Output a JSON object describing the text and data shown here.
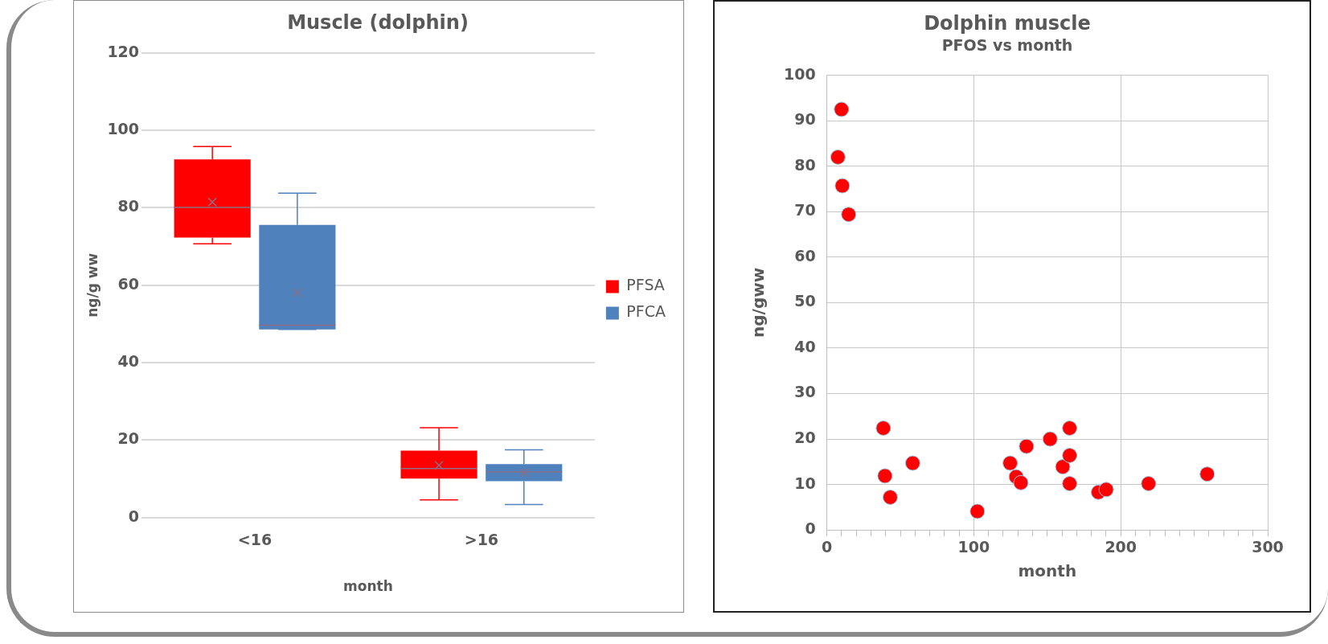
{
  "chart_data": [
    {
      "type": "box",
      "title": "Muscle (dolphin)",
      "xlabel": "month",
      "ylabel": "ng/g ww",
      "categories": [
        "<16",
        ">16"
      ],
      "series": [
        {
          "name": "PFSA",
          "color": "#ff0000",
          "boxes": [
            {
              "low": 70.7,
              "q1": 72.3,
              "median": 80.1,
              "q3": 92.5,
              "high": 95.8,
              "mean": 81.5
            },
            {
              "low": 4.6,
              "q1": 10.1,
              "median": 12.7,
              "q3": 17.3,
              "high": 23.2,
              "mean": 13.5
            }
          ]
        },
        {
          "name": "PFCA",
          "color": "#4f81bd",
          "boxes": [
            {
              "low": 48.6,
              "q1": 48.6,
              "median": 49.7,
              "q3": 75.6,
              "high": 83.8,
              "mean": 58.1
            },
            {
              "low": 3.4,
              "q1": 9.4,
              "median": 11.8,
              "q3": 13.8,
              "high": 17.5,
              "mean": 11.6
            }
          ]
        }
      ],
      "ylim": [
        0,
        120
      ],
      "yticks": [
        0,
        20,
        40,
        60,
        80,
        100,
        120
      ],
      "grid": "y",
      "legend": "right"
    },
    {
      "type": "scatter",
      "title": "Dolphin muscle",
      "subtitle": "PFOS vs month",
      "xlabel": "month",
      "ylabel": "ng/gww",
      "x": [
        9.9,
        7.5,
        10.5,
        14.8,
        38.4,
        39.5,
        43.1,
        58.4,
        102.4,
        124.7,
        128.8,
        132,
        135.8,
        151.9,
        160.5,
        165.2,
        165.2,
        165.2,
        184.8,
        190.1,
        218.9,
        258.8
      ],
      "values": [
        92.5,
        82,
        75.7,
        69.4,
        22.4,
        11.9,
        7.2,
        14.7,
        4.1,
        14.7,
        11.7,
        10.4,
        18.4,
        20,
        13.9,
        22.4,
        16.4,
        10.2,
        8.3,
        8.9,
        10.2,
        12.3
      ],
      "color": "#ff0000",
      "marker": "circle",
      "xlim": [
        0,
        300
      ],
      "xticks": [
        0,
        {
          "value": 10,
          "label": null
        },
        {
          "value": 20,
          "label": null
        },
        {
          "value": 30,
          "label": null
        },
        {
          "value": 40,
          "label": null
        },
        {
          "value": 50,
          "label": null
        },
        {
          "value": 60,
          "label": null
        },
        {
          "value": 70,
          "label": null
        },
        {
          "value": 80,
          "label": null
        },
        {
          "value": 90,
          "label": null
        },
        100,
        {
          "value": 110,
          "label": null
        },
        {
          "value": 120,
          "label": null
        },
        {
          "value": 130,
          "label": null
        },
        {
          "value": 140,
          "label": null
        },
        {
          "value": 150,
          "label": null
        },
        {
          "value": 160,
          "label": null
        },
        {
          "value": 170,
          "label": null
        },
        {
          "value": 180,
          "label": null
        },
        {
          "value": 190,
          "label": null
        },
        200,
        {
          "value": 210,
          "label": null
        },
        {
          "value": 220,
          "label": null
        },
        {
          "value": 230,
          "label": null
        },
        {
          "value": 240,
          "label": null
        },
        {
          "value": 250,
          "label": null
        },
        {
          "value": 260,
          "label": null
        },
        {
          "value": 270,
          "label": null
        },
        {
          "value": 280,
          "label": null
        },
        {
          "value": 290,
          "label": null
        },
        300
      ],
      "ylim": [
        0,
        100
      ],
      "yticks": [
        0,
        10,
        20,
        30,
        40,
        50,
        60,
        70,
        80,
        90,
        100
      ],
      "grid": true,
      "legend": false
    }
  ]
}
